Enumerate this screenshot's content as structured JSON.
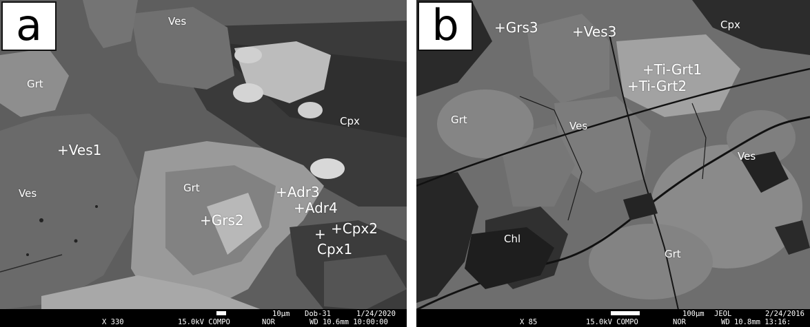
{
  "panels": [
    {
      "letter": "a",
      "labels": {
        "ves_top": "Ves",
        "grt_left": "Grt",
        "cpx": "Cpx",
        "ves1": "+Ves1",
        "ves_left": "Ves",
        "grt_center": "Grt",
        "adr3": "+Adr3",
        "adr4": "+Adr4",
        "grs2": "+Grs2",
        "cpx2": "+Cpx2",
        "cpx1_marker": "+",
        "cpx1": "Cpx1"
      },
      "databar": {
        "scale": "10µm",
        "sample": "Dob-31",
        "date": "1/24/2020",
        "mag": "X 330",
        "kv_mode": "15.0kV COMPO",
        "nor": "NOR",
        "wd_time": "WD 10.6mm 10:00:00"
      }
    },
    {
      "letter": "b",
      "labels": {
        "grs3": "+Grs3",
        "ves3": "+Ves3",
        "cpx": "Cpx",
        "tigrt1": "+Ti-Grt1",
        "tigrt2": "+Ti-Grt2",
        "grt_left": "Grt",
        "ves_center": "Ves",
        "ves_right": "Ves",
        "chl": "Chl",
        "grt_bottom": "Grt"
      },
      "databar": {
        "scale": "100µm",
        "jeol": "JEOL",
        "date": "2/24/2016",
        "mag": "X 85",
        "kv_mode": "15.0kV COMPO",
        "nor": "NOR",
        "wd_time": "WD 10.8mm 13:16:"
      }
    }
  ]
}
